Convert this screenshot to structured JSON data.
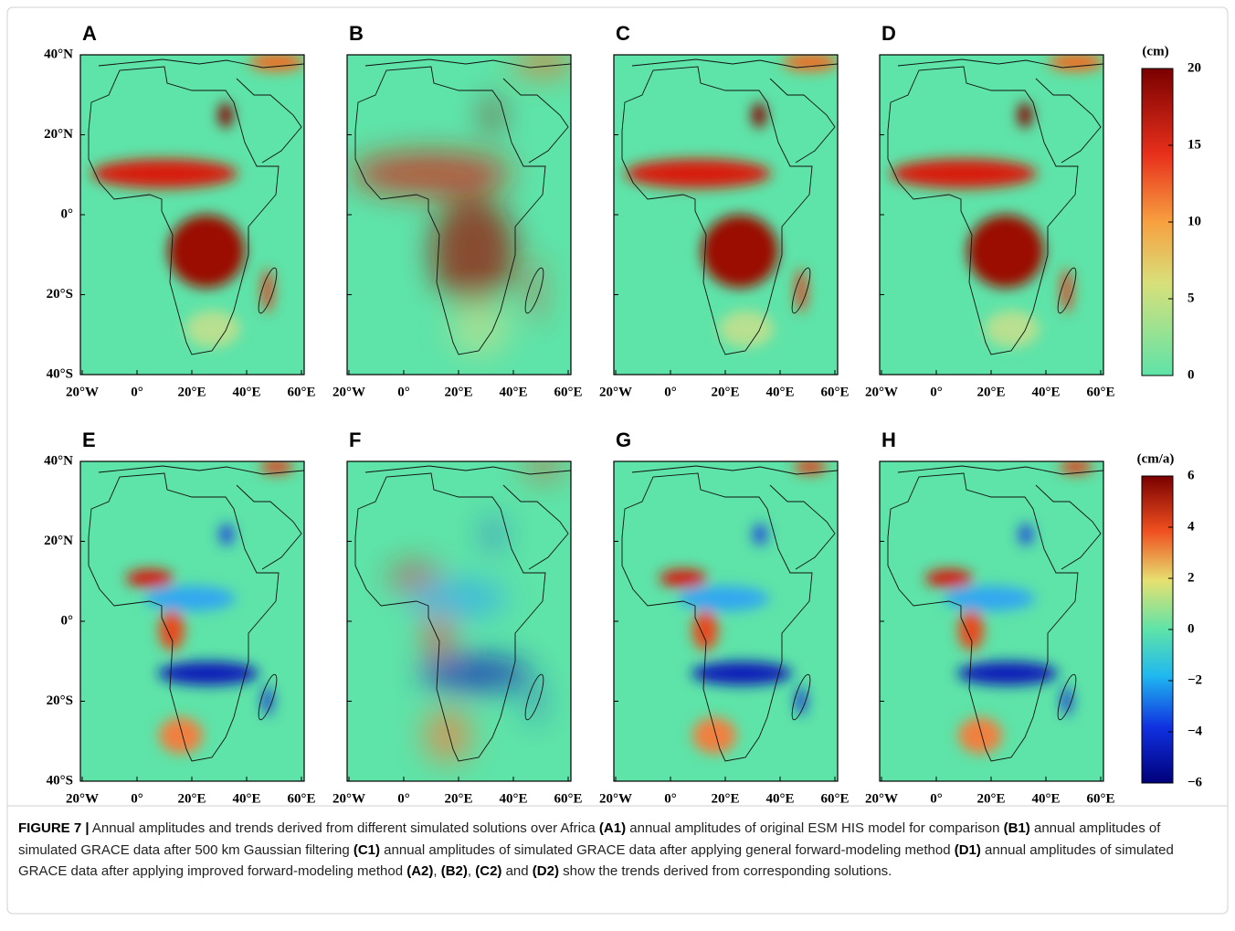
{
  "panels": [
    {
      "label": "A"
    },
    {
      "label": "B"
    },
    {
      "label": "C"
    },
    {
      "label": "D"
    },
    {
      "label": "E"
    },
    {
      "label": "F"
    },
    {
      "label": "G"
    },
    {
      "label": "H"
    }
  ],
  "axes": {
    "yticks": [
      "40°N",
      "20°N",
      "0°",
      "20°S",
      "40°S"
    ],
    "xticks": [
      "20°W",
      "0°",
      "20°E",
      "40°E",
      "60°E"
    ]
  },
  "colorbars": [
    {
      "unit": "(cm)",
      "ticks": [
        20,
        15,
        10,
        5,
        0
      ]
    },
    {
      "unit": "(cm/a)",
      "ticks": [
        6,
        4,
        2,
        0,
        {
          "value": -2,
          "label": "−2"
        },
        {
          "value": -4,
          "label": "−4"
        },
        {
          "value": -6,
          "label": "−6"
        }
      ]
    }
  ],
  "caption": {
    "runs": [
      {
        "text": "FIGURE 7 |",
        "bold": true
      },
      {
        "text": " Annual amplitudes and trends derived from different simulated solutions over Africa ",
        "bold": false
      },
      {
        "text": "(A1)",
        "bold": true
      },
      {
        "text": " annual amplitudes of original ESM HIS model for comparison ",
        "bold": false
      },
      {
        "text": "(B1)",
        "bold": true
      },
      {
        "text": " annual amplitudes of simulated GRACE data after 500 km Gaussian filtering ",
        "bold": false
      },
      {
        "text": "(C1)",
        "bold": true
      },
      {
        "text": " annual amplitudes of simulated GRACE data after applying general forward-modeling method ",
        "bold": false
      },
      {
        "text": "(D1)",
        "bold": true
      },
      {
        "text": " annual amplitudes of simulated GRACE data after applying improved forward-modeling method ",
        "bold": false
      },
      {
        "text": "(A2)",
        "bold": true
      },
      {
        "text": ", ",
        "bold": false
      },
      {
        "text": "(B2)",
        "bold": true
      },
      {
        "text": ", ",
        "bold": false
      },
      {
        "text": "(C2)",
        "bold": true
      },
      {
        "text": " and ",
        "bold": false
      },
      {
        "text": "(D2)",
        "bold": true
      },
      {
        "text": " show the trends derived from corresponding solutions.",
        "bold": false
      }
    ]
  }
}
